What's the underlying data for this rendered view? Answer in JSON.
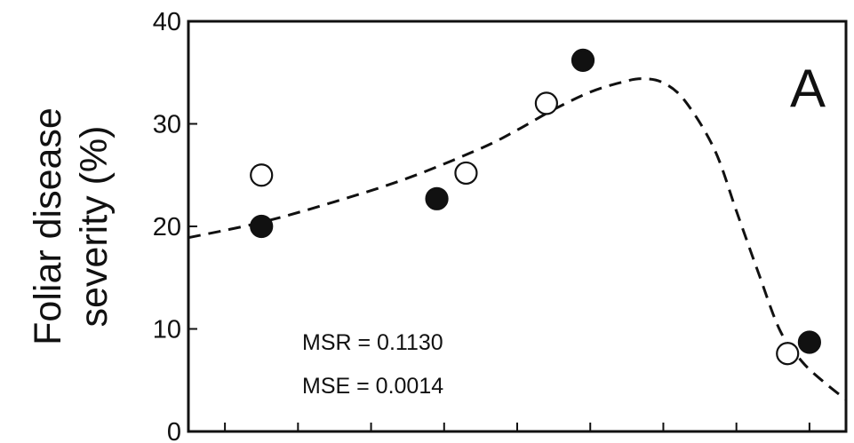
{
  "chart_data": {
    "type": "scatter",
    "title": "",
    "ylabel_line1": "Foliar disease",
    "ylabel_line2": "severity (%)",
    "xlabel": "",
    "ylim": [
      0,
      40
    ],
    "yticks": [
      0,
      10,
      20,
      30,
      40
    ],
    "xlim": [
      0,
      9
    ],
    "xticks": [
      0.5,
      1.5,
      2.5,
      3.5,
      4.5,
      5.5,
      6.5,
      7.5,
      8.5
    ],
    "grid": false,
    "panel_label": "A",
    "annotations": [
      "MSR = 0.1130",
      "MSE = 0.0014"
    ],
    "series": [
      {
        "marker": "filled",
        "points": [
          [
            1.0,
            20.0
          ],
          [
            3.4,
            22.7
          ],
          [
            5.4,
            36.2
          ],
          [
            8.5,
            8.7
          ]
        ]
      },
      {
        "marker": "open",
        "points": [
          [
            1.0,
            25.0
          ],
          [
            3.8,
            25.2
          ],
          [
            4.9,
            32.0
          ],
          [
            8.2,
            7.6
          ]
        ]
      },
      {
        "style": "dashed-fit",
        "points": [
          [
            0,
            18.9
          ],
          [
            1.0,
            20.4
          ],
          [
            2.0,
            22.4
          ],
          [
            3.0,
            24.7
          ],
          [
            4.0,
            27.6
          ],
          [
            4.5,
            29.4
          ],
          [
            5.0,
            31.4
          ],
          [
            5.5,
            33.1
          ],
          [
            5.9,
            34.0
          ],
          [
            6.2,
            34.4
          ],
          [
            6.5,
            34.0
          ],
          [
            6.8,
            32.2
          ],
          [
            7.2,
            27.5
          ],
          [
            7.5,
            21.5
          ],
          [
            7.8,
            15.5
          ],
          [
            8.1,
            9.8
          ],
          [
            8.4,
            6.8
          ],
          [
            8.7,
            4.8
          ],
          [
            9.0,
            3.1
          ]
        ]
      }
    ],
    "colors": {
      "ink": "#111111",
      "filled_marker": "#111111",
      "open_marker_fill": "#ffffff"
    }
  }
}
